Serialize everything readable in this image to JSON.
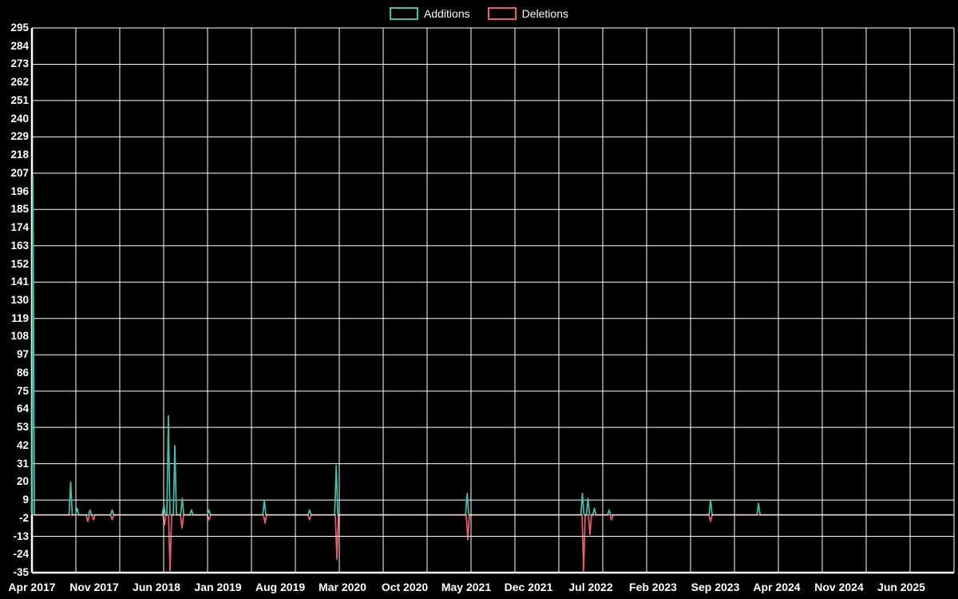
{
  "legend": {
    "position": "top-center",
    "items": [
      {
        "id": "additions",
        "label": "Additions",
        "color": "#3fc3b1"
      },
      {
        "id": "deletions",
        "label": "Deletions",
        "color": "#f35b6d"
      }
    ]
  },
  "chart_data": {
    "type": "line",
    "title": "",
    "xlabel": "",
    "ylabel": "",
    "background_color": "#000000",
    "grid": {
      "on": true,
      "color": "#ffffff",
      "vertical_divisions": 21
    },
    "axis_color": "#ffffff",
    "y_axis": {
      "min": -35,
      "max": 295,
      "tick_step": 11,
      "gridline_every_n_ticks": 2,
      "ticks": [
        295,
        284,
        273,
        262,
        251,
        240,
        229,
        218,
        207,
        196,
        185,
        174,
        163,
        152,
        141,
        130,
        119,
        108,
        97,
        86,
        75,
        64,
        53,
        42,
        31,
        20,
        9,
        -2,
        -13,
        -24,
        -35
      ]
    },
    "x_axis": {
      "ticks": [
        {
          "label": "Apr 2017",
          "x": 0.0
        },
        {
          "label": "Nov 2017",
          "x": 0.0673
        },
        {
          "label": "Jun 2018",
          "x": 0.1347
        },
        {
          "label": "Jan 2019",
          "x": 0.202
        },
        {
          "label": "Aug 2019",
          "x": 0.2694
        },
        {
          "label": "Mar 2020",
          "x": 0.3367
        },
        {
          "label": "Oct 2020",
          "x": 0.4041
        },
        {
          "label": "May 2021",
          "x": 0.4714
        },
        {
          "label": "Dec 2021",
          "x": 0.5388
        },
        {
          "label": "Jul 2022",
          "x": 0.6061
        },
        {
          "label": "Feb 2023",
          "x": 0.6735
        },
        {
          "label": "Sep 2023",
          "x": 0.7408
        },
        {
          "label": "Apr 2024",
          "x": 0.8082
        },
        {
          "label": "Nov 2024",
          "x": 0.8755
        },
        {
          "label": "Jun 2025",
          "x": 0.9429
        }
      ]
    },
    "series": [
      {
        "name": "Additions",
        "color": "#3fc3b1",
        "baseline": 0,
        "spikes": [
          {
            "x": 0.001,
            "y": 205
          },
          {
            "x": 0.042,
            "y": 20
          },
          {
            "x": 0.049,
            "y": 4
          },
          {
            "x": 0.063,
            "y": 3
          },
          {
            "x": 0.087,
            "y": 3
          },
          {
            "x": 0.143,
            "y": 6
          },
          {
            "x": 0.148,
            "y": 60
          },
          {
            "x": 0.155,
            "y": 42
          },
          {
            "x": 0.163,
            "y": 10
          },
          {
            "x": 0.173,
            "y": 3
          },
          {
            "x": 0.192,
            "y": 3
          },
          {
            "x": 0.252,
            "y": 9
          },
          {
            "x": 0.301,
            "y": 3
          },
          {
            "x": 0.33,
            "y": 30
          },
          {
            "x": 0.472,
            "y": 13
          },
          {
            "x": 0.597,
            "y": 13
          },
          {
            "x": 0.603,
            "y": 10
          },
          {
            "x": 0.61,
            "y": 4
          },
          {
            "x": 0.626,
            "y": 3
          },
          {
            "x": 0.736,
            "y": 9
          },
          {
            "x": 0.788,
            "y": 7
          }
        ]
      },
      {
        "name": "Deletions",
        "color": "#f35b6d",
        "baseline": 0,
        "spikes": [
          {
            "x": 0.0606,
            "y": -4
          },
          {
            "x": 0.0667,
            "y": -3
          },
          {
            "x": 0.087,
            "y": -3
          },
          {
            "x": 0.1437,
            "y": -6
          },
          {
            "x": 0.1498,
            "y": -34
          },
          {
            "x": 0.1628,
            "y": -8
          },
          {
            "x": 0.192,
            "y": -3
          },
          {
            "x": 0.2528,
            "y": -5
          },
          {
            "x": 0.301,
            "y": -3
          },
          {
            "x": 0.3307,
            "y": -27
          },
          {
            "x": 0.4727,
            "y": -15
          },
          {
            "x": 0.5983,
            "y": -34
          },
          {
            "x": 0.6052,
            "y": -12
          },
          {
            "x": 0.6286,
            "y": -3
          },
          {
            "x": 0.736,
            "y": -4
          }
        ]
      }
    ]
  }
}
